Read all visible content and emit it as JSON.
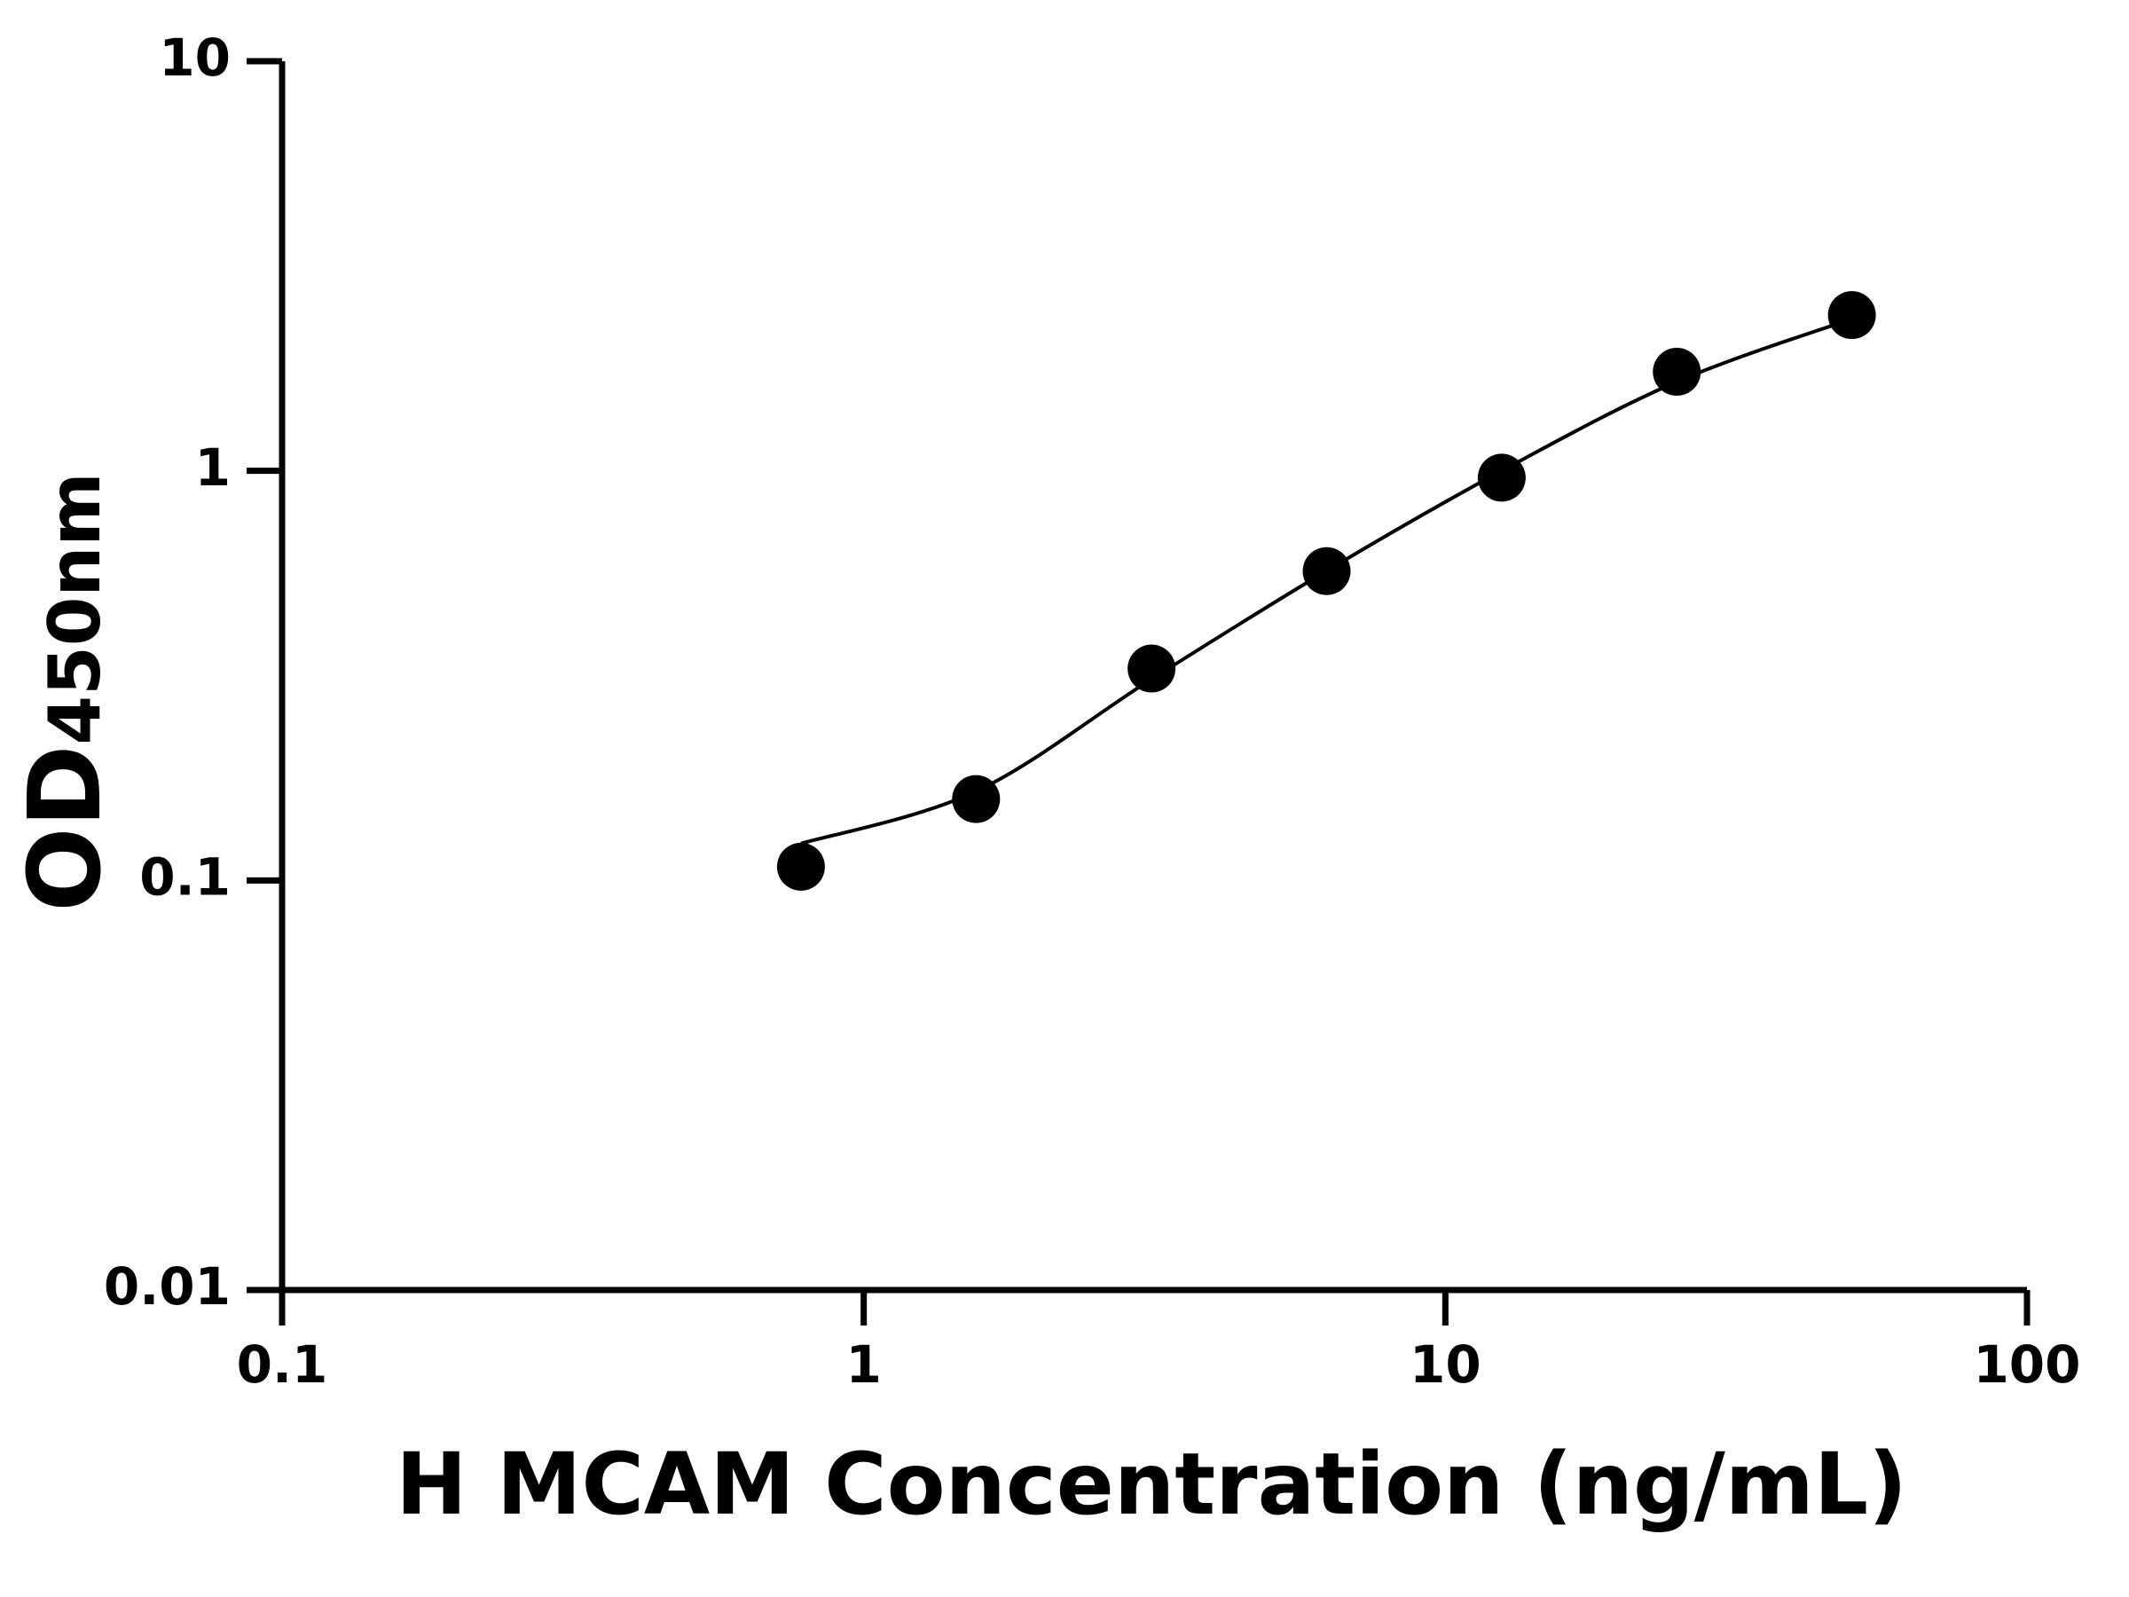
{
  "chart_data": {
    "type": "scatter",
    "x_label": "H MCAM Concentration (ng/mL)",
    "y_label": {
      "main": "OD",
      "subscript": "450nm"
    },
    "x": [
      0.78,
      1.56,
      3.125,
      6.25,
      12.5,
      25,
      50
    ],
    "values": [
      0.108,
      0.158,
      0.329,
      0.569,
      0.962,
      1.745,
      2.4
    ],
    "curve": {
      "x": [
        0.78,
        1.56,
        3.125,
        6.25,
        12.5,
        25,
        50
      ],
      "values": [
        0.123,
        0.165,
        0.31,
        0.57,
        1.0,
        1.65,
        2.35
      ]
    },
    "color": "#000000",
    "xlog": true,
    "ylog": true,
    "xlim": [
      0.1,
      100
    ],
    "xticks": [
      0.1,
      1,
      10,
      100
    ],
    "ylim": [
      0.01,
      10
    ],
    "yticks": [
      0.01,
      0.1,
      1,
      10
    ],
    "grid": false
  }
}
